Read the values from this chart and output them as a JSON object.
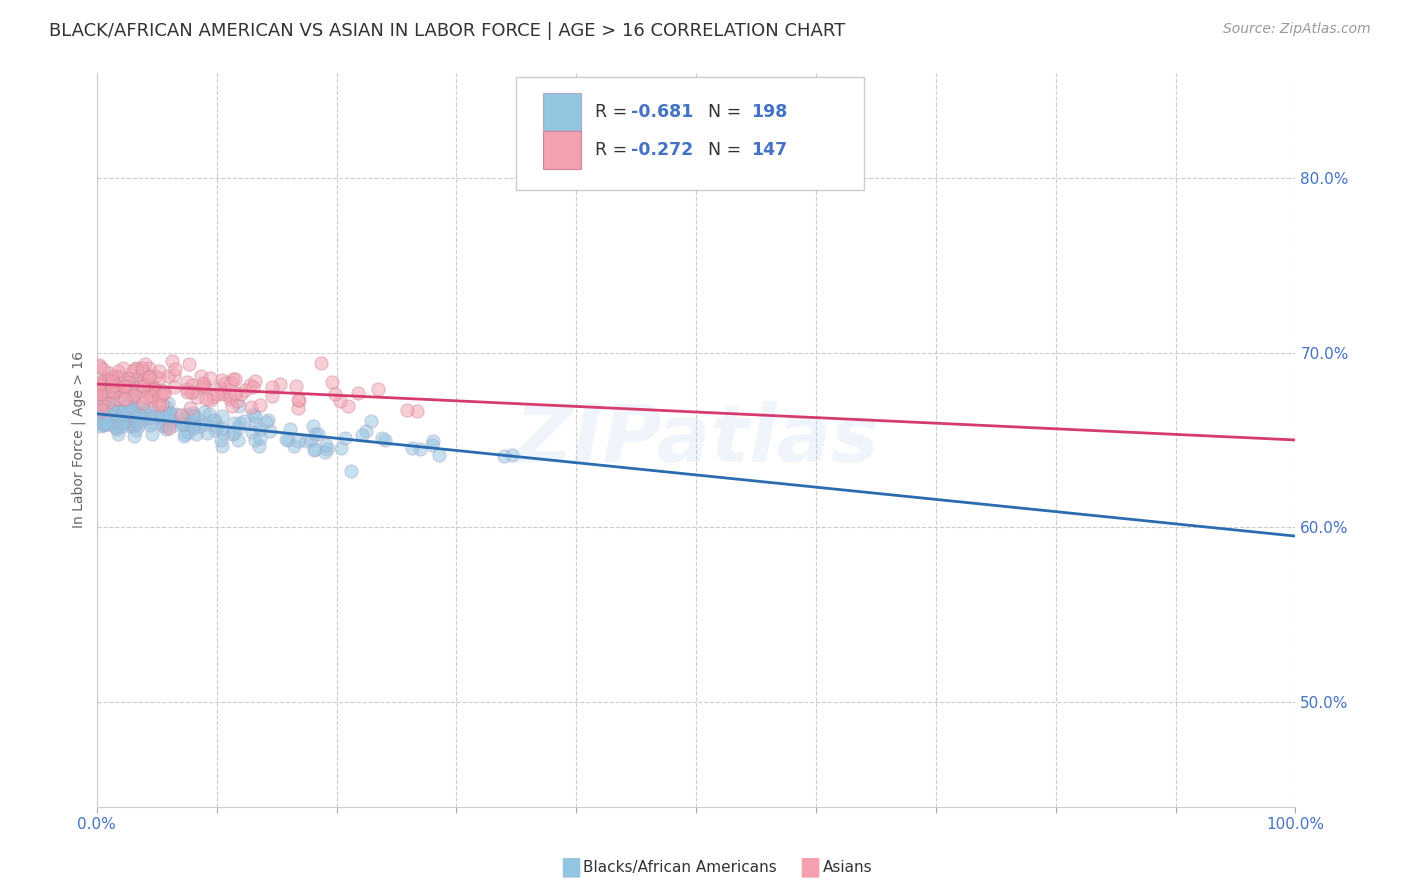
{
  "title": "BLACK/AFRICAN AMERICAN VS ASIAN IN LABOR FORCE | AGE > 16 CORRELATION CHART",
  "source_text": "Source: ZipAtlas.com",
  "ylabel": "In Labor Force | Age > 16",
  "xlim": [
    0.0,
    1.0
  ],
  "ylim": [
    0.44,
    0.86
  ],
  "yticks": [
    0.5,
    0.6,
    0.7,
    0.8
  ],
  "ytick_labels": [
    "50.0%",
    "60.0%",
    "70.0%",
    "80.0%"
  ],
  "xticks": [
    0.0,
    0.1,
    0.2,
    0.3,
    0.4,
    0.5,
    0.6,
    0.7,
    0.8,
    0.9,
    1.0
  ],
  "blue_color": "#93c4e0",
  "blue_line_color": "#2b6cb0",
  "pink_color": "#f4a0b0",
  "pink_line_color": "#d63b6e",
  "legend_R_blue": "-0.681",
  "legend_N_blue": "198",
  "legend_R_pink": "-0.272",
  "legend_N_pink": "147",
  "legend_label_blue": "Blacks/African Americans",
  "legend_label_pink": "Asians",
  "watermark": "ZIPatlas",
  "blue_n": 198,
  "pink_n": 147,
  "blue_R": -0.681,
  "pink_R": -0.272,
  "blue_line_start_y": 0.665,
  "blue_line_end_y": 0.595,
  "pink_line_start_y": 0.682,
  "pink_line_end_y": 0.65,
  "grid_color": "#cccccc",
  "background_color": "#ffffff",
  "title_color": "#333333",
  "axis_label_color": "#666666",
  "tick_label_color": "#4472C4",
  "title_fontsize": 13,
  "source_fontsize": 10,
  "ylabel_fontsize": 10,
  "tick_fontsize": 11,
  "marker_size": 90,
  "marker_alpha": 0.5,
  "marker_edge_color": "#aaaacc",
  "marker_edge_width": 0.8
}
